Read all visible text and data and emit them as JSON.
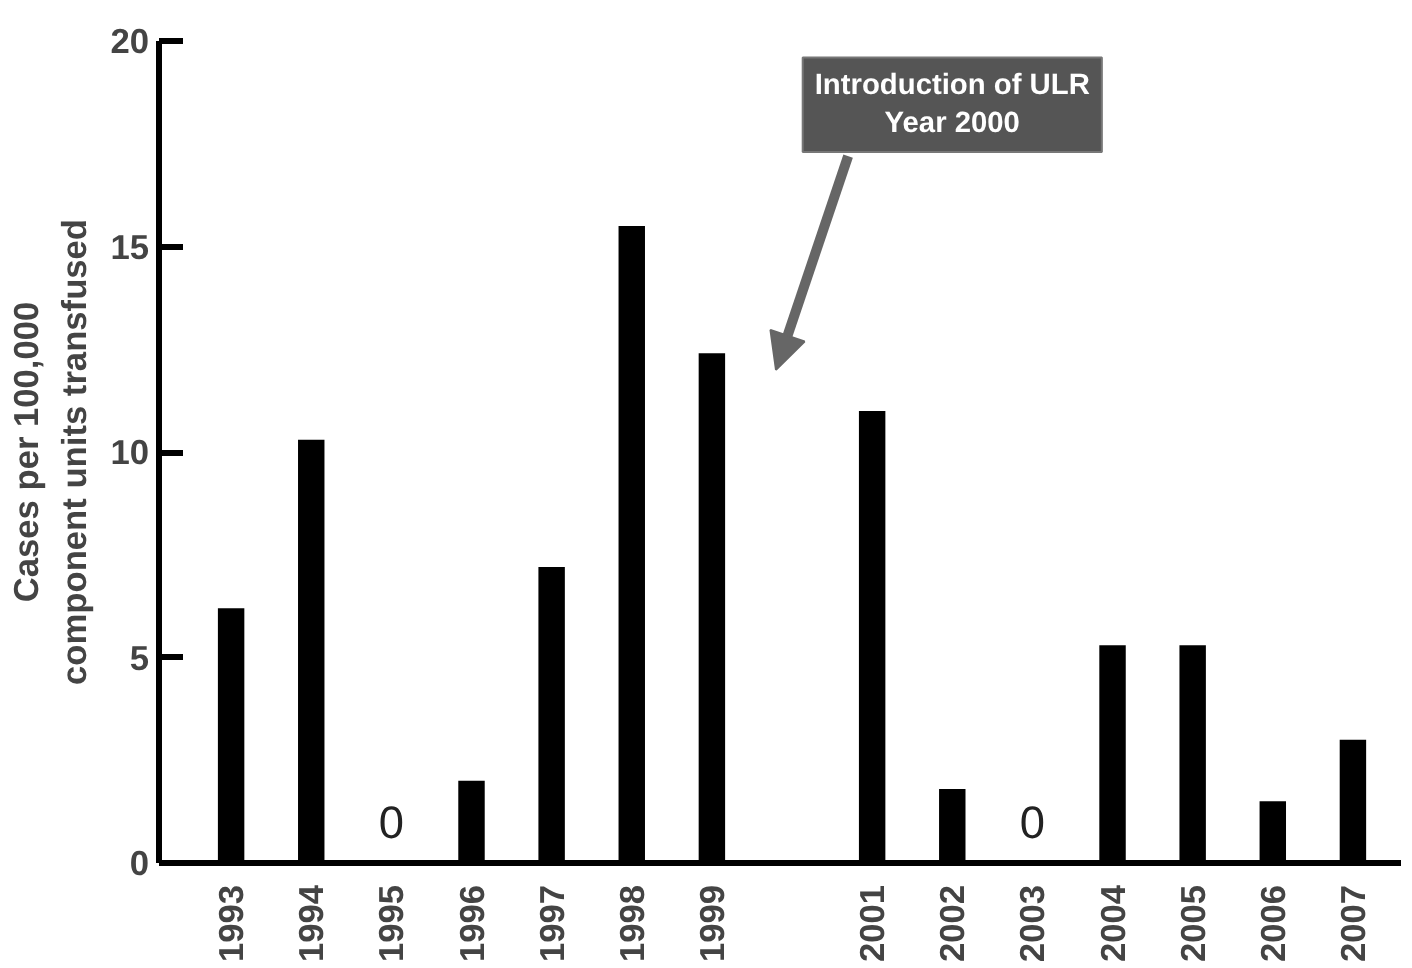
{
  "chart_data": {
    "type": "bar",
    "ylabel": "Cases per 100,000\ncomponent units transfused",
    "categories": [
      "1993",
      "1994",
      "1995",
      "1996",
      "1997",
      "1998",
      "1999",
      null,
      "2001",
      "2002",
      "2003",
      "2004",
      "2005",
      "2006",
      "2007"
    ],
    "values": [
      6.2,
      10.3,
      0,
      2.0,
      7.2,
      15.5,
      12.4,
      null,
      11.0,
      1.8,
      0,
      5.3,
      5.3,
      1.5,
      3.0
    ],
    "value_labels": [
      null,
      null,
      "0",
      null,
      null,
      null,
      null,
      null,
      null,
      null,
      "0",
      null,
      null,
      null,
      null
    ],
    "color": "#000000",
    "ylim": [
      0,
      20
    ],
    "yticks": [
      0,
      5,
      10,
      15,
      20
    ],
    "grid": false,
    "annotations": [
      "Introduction of ULR\nYear 2000"
    ]
  }
}
